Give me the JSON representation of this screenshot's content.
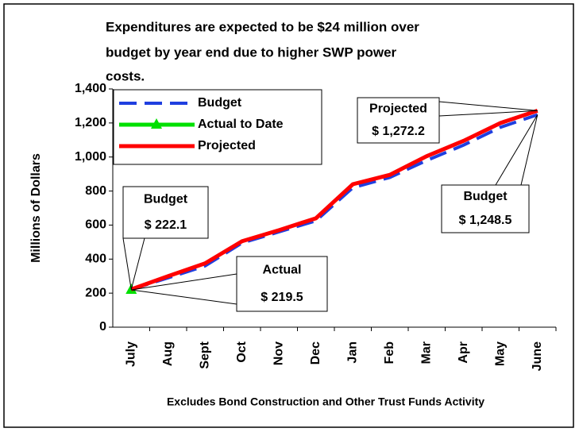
{
  "chart_data": {
    "type": "line",
    "title": [
      "Expenditures are expected to be $24 million over",
      "budget by year end due to higher SWP power",
      "costs."
    ],
    "y_label": "Millions of Dollars",
    "footnote": "Excludes Bond Construction and Other Trust Funds Activity",
    "categories": [
      "July",
      "Aug",
      "Sept",
      "Oct",
      "Nov",
      "Dec",
      "Jan",
      "Feb",
      "Mar",
      "Apr",
      "May",
      "June"
    ],
    "series": [
      {
        "name": "Budget",
        "color": "#1f3fe0",
        "dashed": true,
        "values": [
          222.1,
          290,
          360,
          495,
          560,
          625,
          820,
          880,
          980,
          1070,
          1175,
          1248.5
        ]
      },
      {
        "name": "Actual to Date",
        "color": "#00e000",
        "marker": "triangle",
        "values": [
          219.5,
          null,
          null,
          null,
          null,
          null,
          null,
          null,
          null,
          null,
          null,
          null
        ]
      },
      {
        "name": "Projected",
        "color": "#ff0000",
        "values": [
          222.1,
          300,
          375,
          505,
          570,
          640,
          840,
          895,
          1005,
          1095,
          1200,
          1272.2
        ]
      }
    ],
    "ylim": [
      0,
      1400
    ],
    "yticks": [
      0,
      200,
      400,
      600,
      800,
      {
        "value": 1000,
        "label": "1,000"
      },
      {
        "value": 1200,
        "label": "1,200"
      },
      {
        "value": 1400,
        "label": "1,400"
      }
    ],
    "grid": false,
    "legend": "top-left",
    "annotations": [
      {
        "lines": [
          "Budget",
          "$ 222.1"
        ]
      },
      {
        "lines": [
          "Actual",
          "$ 219.5"
        ]
      },
      {
        "lines": [
          "Projected",
          "$ 1,272.2"
        ]
      },
      {
        "lines": [
          "Budget",
          "$ 1,248.5"
        ]
      }
    ]
  }
}
